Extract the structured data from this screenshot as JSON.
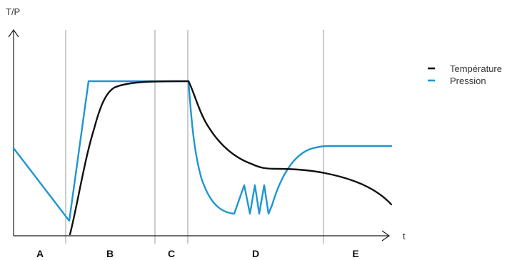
{
  "axes": {
    "y_label": "T/P",
    "x_label": "t"
  },
  "phases": [
    {
      "label": "A"
    },
    {
      "label": "B"
    },
    {
      "label": "C"
    },
    {
      "label": "D"
    },
    {
      "label": "E"
    }
  ],
  "legend": {
    "temperature": {
      "label": "Température",
      "color": "#111111"
    },
    "pressure": {
      "label": "Pression",
      "color": "#1e96d2"
    }
  }
}
